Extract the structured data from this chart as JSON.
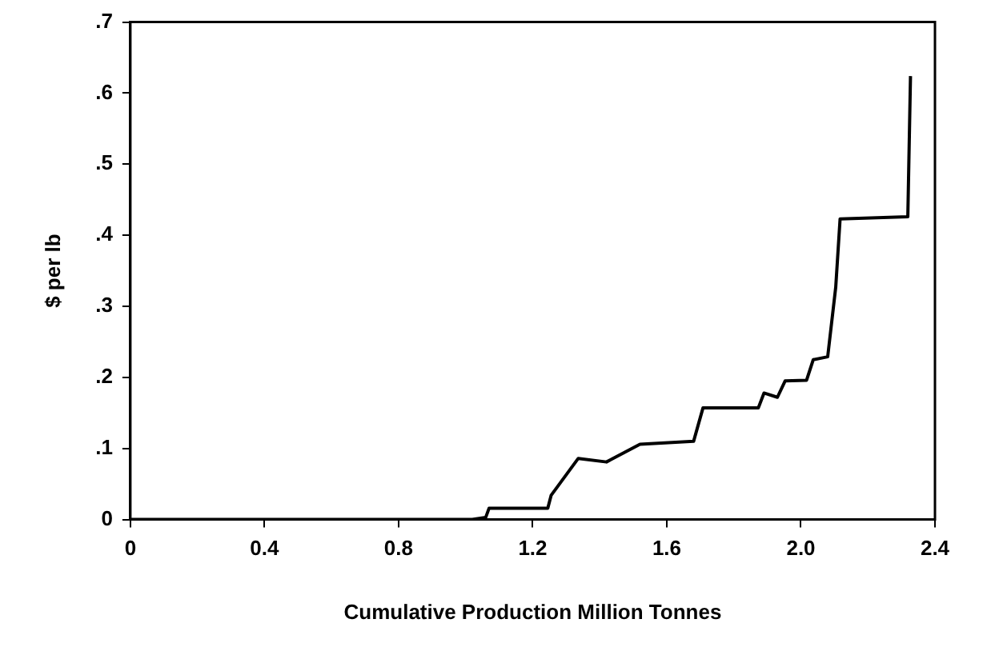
{
  "chart_data": {
    "type": "line",
    "xlabel": "Cumulative Production Million Tonnes",
    "ylabel": "$ per lb",
    "xlim": [
      0,
      2.4
    ],
    "ylim": [
      0,
      0.7
    ],
    "xticks": [
      0,
      0.4,
      0.8,
      1.2,
      1.6,
      {
        "value": 2.0,
        "label": "2.0"
      },
      2.4
    ],
    "yticks": [
      0,
      {
        "value": 0.1,
        "label": ".1"
      },
      {
        "value": 0.2,
        "label": ".2"
      },
      {
        "value": 0.3,
        "label": ".3"
      },
      {
        "value": 0.4,
        "label": ".4"
      },
      {
        "value": 0.5,
        "label": ".5"
      },
      {
        "value": 0.6,
        "label": ".6"
      },
      {
        "value": 0.7,
        "label": ".7"
      }
    ],
    "grid": false,
    "legend": false,
    "marker": "none",
    "line_style": "solid",
    "series": [
      {
        "color": "#000000",
        "x": [
          0,
          1.02,
          1.06,
          1.07,
          1.245,
          1.255,
          1.336,
          1.42,
          1.52,
          1.68,
          1.708,
          1.873,
          1.89,
          1.93,
          1.953,
          2.017,
          2.037,
          2.08,
          2.104,
          2.117,
          2.319,
          2.327
        ],
        "values": [
          0,
          0,
          0.003,
          0.016,
          0.016,
          0.034,
          0.086,
          0.081,
          0.106,
          0.11,
          0.157,
          0.157,
          0.178,
          0.172,
          0.195,
          0.196,
          0.225,
          0.229,
          0.327,
          0.423,
          0.426,
          0.624
        ]
      }
    ]
  }
}
